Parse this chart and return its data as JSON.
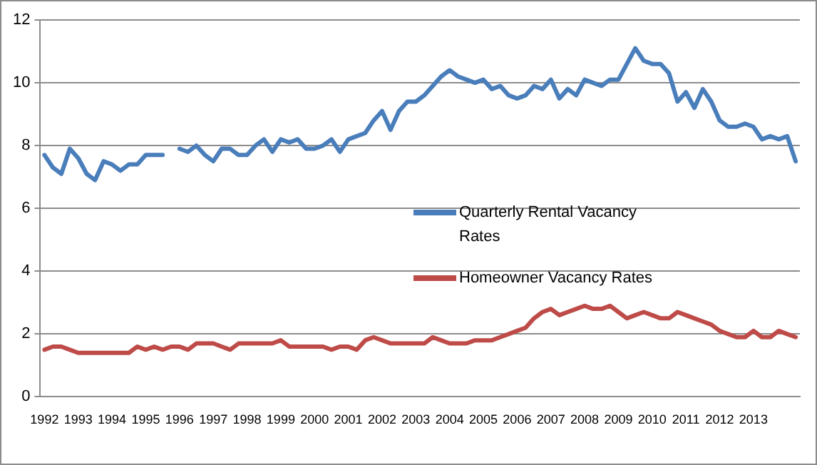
{
  "chart_data": {
    "type": "line",
    "categories": [
      "1992",
      null,
      null,
      null,
      "1993",
      null,
      null,
      null,
      "1994",
      null,
      null,
      null,
      "1995",
      null,
      null,
      null,
      "1996",
      null,
      null,
      null,
      "1997",
      null,
      null,
      null,
      "1998",
      null,
      null,
      null,
      "1999",
      null,
      null,
      null,
      "2000",
      null,
      null,
      null,
      "2001",
      null,
      null,
      null,
      "2002",
      null,
      null,
      null,
      "2003",
      null,
      null,
      null,
      "2004",
      null,
      null,
      null,
      "2005",
      null,
      null,
      null,
      "2006",
      null,
      null,
      null,
      "2007",
      null,
      null,
      null,
      "2008",
      null,
      null,
      null,
      "2009",
      null,
      null,
      null,
      "2010",
      null,
      null,
      null,
      "2011",
      null,
      null,
      null,
      "2012",
      null,
      null,
      null,
      "2013",
      null,
      null,
      null,
      null,
      null
    ],
    "ylim": [
      0,
      12
    ],
    "yticks": [
      0,
      2,
      4,
      6,
      8,
      10,
      12
    ],
    "grid": "y",
    "legend": "right",
    "marker": "none",
    "line_style": "solid",
    "series": [
      {
        "name": "Quarterly Rental Vacancy Rates",
        "color": "#4a7ebb",
        "values": [
          7.7,
          7.3,
          7.1,
          7.9,
          7.6,
          7.1,
          6.9,
          7.5,
          7.4,
          7.2,
          7.4,
          7.4,
          7.7,
          7.7,
          7.7,
          null,
          7.9,
          7.8,
          8.0,
          7.7,
          7.5,
          7.9,
          7.9,
          7.7,
          7.7,
          8.0,
          8.2,
          7.8,
          8.2,
          8.1,
          8.2,
          7.9,
          7.9,
          8.0,
          8.2,
          7.8,
          8.2,
          8.3,
          8.4,
          8.8,
          9.1,
          8.5,
          9.1,
          9.4,
          9.4,
          9.6,
          9.9,
          10.2,
          10.4,
          10.2,
          10.1,
          10.0,
          10.1,
          9.8,
          9.9,
          9.6,
          9.5,
          9.6,
          9.9,
          9.8,
          10.1,
          9.5,
          9.8,
          9.6,
          10.1,
          10.0,
          9.9,
          10.1,
          10.1,
          10.6,
          11.1,
          10.7,
          10.6,
          10.6,
          10.3,
          9.4,
          9.7,
          9.2,
          9.8,
          9.4,
          8.8,
          8.6,
          8.6,
          8.7,
          8.6,
          8.2,
          8.3,
          8.2,
          8.3,
          7.5
        ]
      },
      {
        "name": "Homeowner Vacancy Rates",
        "color": "#be4b48",
        "values": [
          1.5,
          1.6,
          1.6,
          1.5,
          1.4,
          1.4,
          1.4,
          1.4,
          1.4,
          1.4,
          1.4,
          1.6,
          1.5,
          1.6,
          1.5,
          1.6,
          1.6,
          1.5,
          1.7,
          1.7,
          1.7,
          1.6,
          1.5,
          1.7,
          1.7,
          1.7,
          1.7,
          1.7,
          1.8,
          1.6,
          1.6,
          1.6,
          1.6,
          1.6,
          1.5,
          1.6,
          1.6,
          1.5,
          1.8,
          1.9,
          1.8,
          1.7,
          1.7,
          1.7,
          1.7,
          1.7,
          1.9,
          1.8,
          1.7,
          1.7,
          1.7,
          1.8,
          1.8,
          1.8,
          1.9,
          2.0,
          2.1,
          2.2,
          2.5,
          2.7,
          2.8,
          2.6,
          2.7,
          2.8,
          2.9,
          2.8,
          2.8,
          2.9,
          2.7,
          2.5,
          2.6,
          2.7,
          2.6,
          2.5,
          2.5,
          2.7,
          2.6,
          2.5,
          2.4,
          2.3,
          2.1,
          2.0,
          1.9,
          1.9,
          2.1,
          1.9,
          1.9,
          2.1,
          2.0,
          1.9
        ]
      }
    ]
  }
}
